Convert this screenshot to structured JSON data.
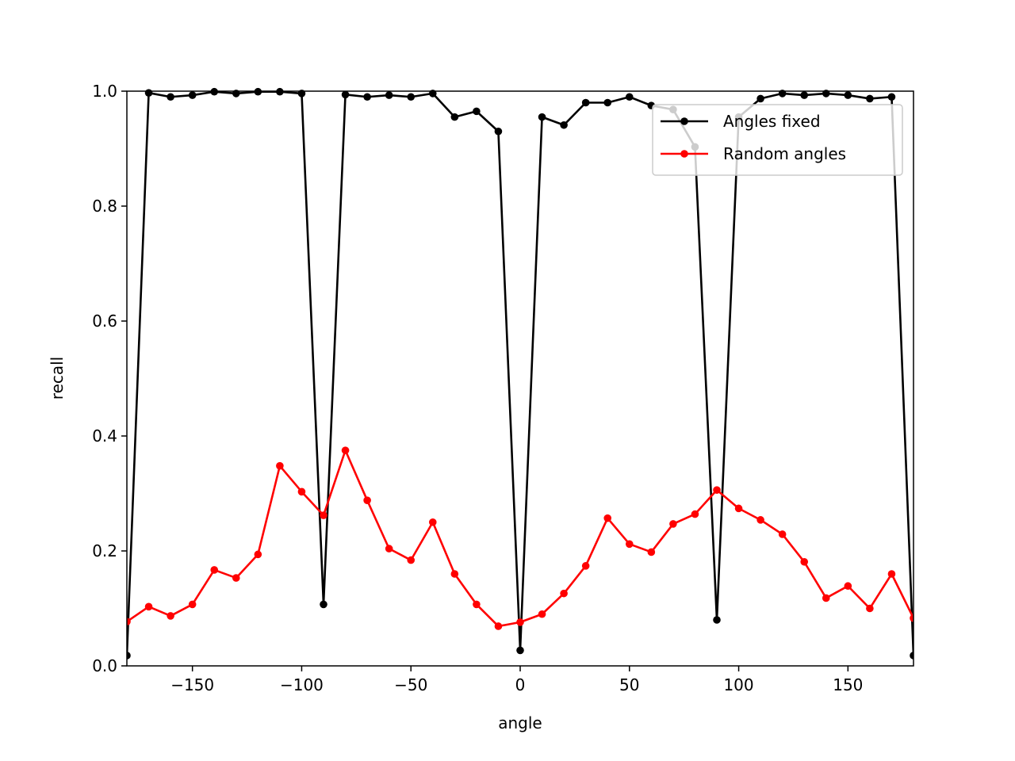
{
  "chart_data": {
    "type": "line",
    "xlabel": "angle",
    "ylabel": "recall",
    "xlim": [
      -180,
      180
    ],
    "ylim": [
      0.0,
      1.0
    ],
    "xticks": [
      -150,
      -100,
      -50,
      0,
      50,
      100,
      150
    ],
    "xtick_labels": [
      "−150",
      "−100",
      "−50",
      "0",
      "50",
      "100",
      "150"
    ],
    "yticks": [
      0.0,
      0.2,
      0.4,
      0.6,
      0.8,
      1.0
    ],
    "ytick_labels": [
      "0.0",
      "0.2",
      "0.4",
      "0.6",
      "0.8",
      "1.0"
    ],
    "grid": false,
    "legend_position": "top-right",
    "x": [
      -180,
      -170,
      -160,
      -150,
      -140,
      -130,
      -120,
      -110,
      -100,
      -90,
      -80,
      -70,
      -60,
      -50,
      -40,
      -30,
      -20,
      -10,
      0,
      10,
      20,
      30,
      40,
      50,
      60,
      70,
      80,
      90,
      100,
      110,
      120,
      130,
      140,
      150,
      160,
      170,
      180
    ],
    "series": [
      {
        "name": "Angles fixed",
        "color": "#000000",
        "values": [
          0.018,
          0.997,
          0.99,
          0.993,
          0.999,
          0.996,
          0.999,
          0.999,
          0.996,
          0.107,
          0.994,
          0.99,
          0.993,
          0.99,
          0.996,
          0.955,
          0.965,
          0.93,
          0.027,
          0.955,
          0.941,
          0.98,
          0.98,
          0.99,
          0.975,
          0.968,
          0.903,
          0.08,
          0.955,
          0.987,
          0.996,
          0.993,
          0.996,
          0.993,
          0.987,
          0.99,
          0.018
        ]
      },
      {
        "name": "Random angles",
        "color": "#ff0000",
        "values": [
          0.077,
          0.103,
          0.087,
          0.107,
          0.167,
          0.153,
          0.194,
          0.348,
          0.303,
          0.262,
          0.375,
          0.288,
          0.204,
          0.184,
          0.25,
          0.16,
          0.107,
          0.069,
          0.076,
          0.09,
          0.126,
          0.174,
          0.257,
          0.212,
          0.198,
          0.247,
          0.264,
          0.306,
          0.274,
          0.254,
          0.229,
          0.181,
          0.118,
          0.139,
          0.1,
          0.16,
          0.083
        ]
      }
    ]
  }
}
